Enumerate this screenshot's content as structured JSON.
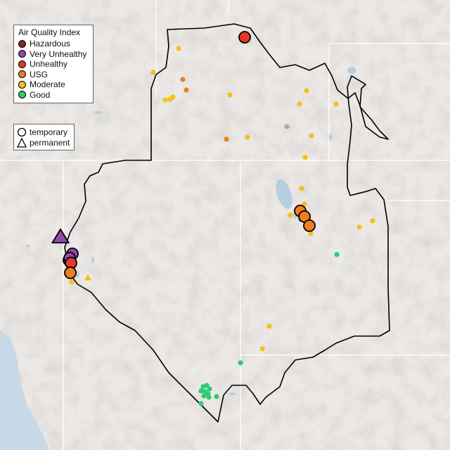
{
  "legend": {
    "title": "Air Quality Index",
    "categories": [
      {
        "label": "Hazardous",
        "color": "#7e2a2a"
      },
      {
        "label": "Very Unhealthy",
        "color": "#8e4aa6"
      },
      {
        "label": "Unhealthy",
        "color": "#e0392a"
      },
      {
        "label": "USG",
        "color": "#ee7f1f"
      },
      {
        "label": "Moderate",
        "color": "#f2c215"
      },
      {
        "label": "Good",
        "color": "#2ecc71"
      }
    ],
    "monitor_types": [
      {
        "label": "temporary",
        "shape": "circle-icon"
      },
      {
        "label": "permanent",
        "shape": "triangle-icon"
      }
    ]
  },
  "no_data_color": "#aaaaaa"
}
